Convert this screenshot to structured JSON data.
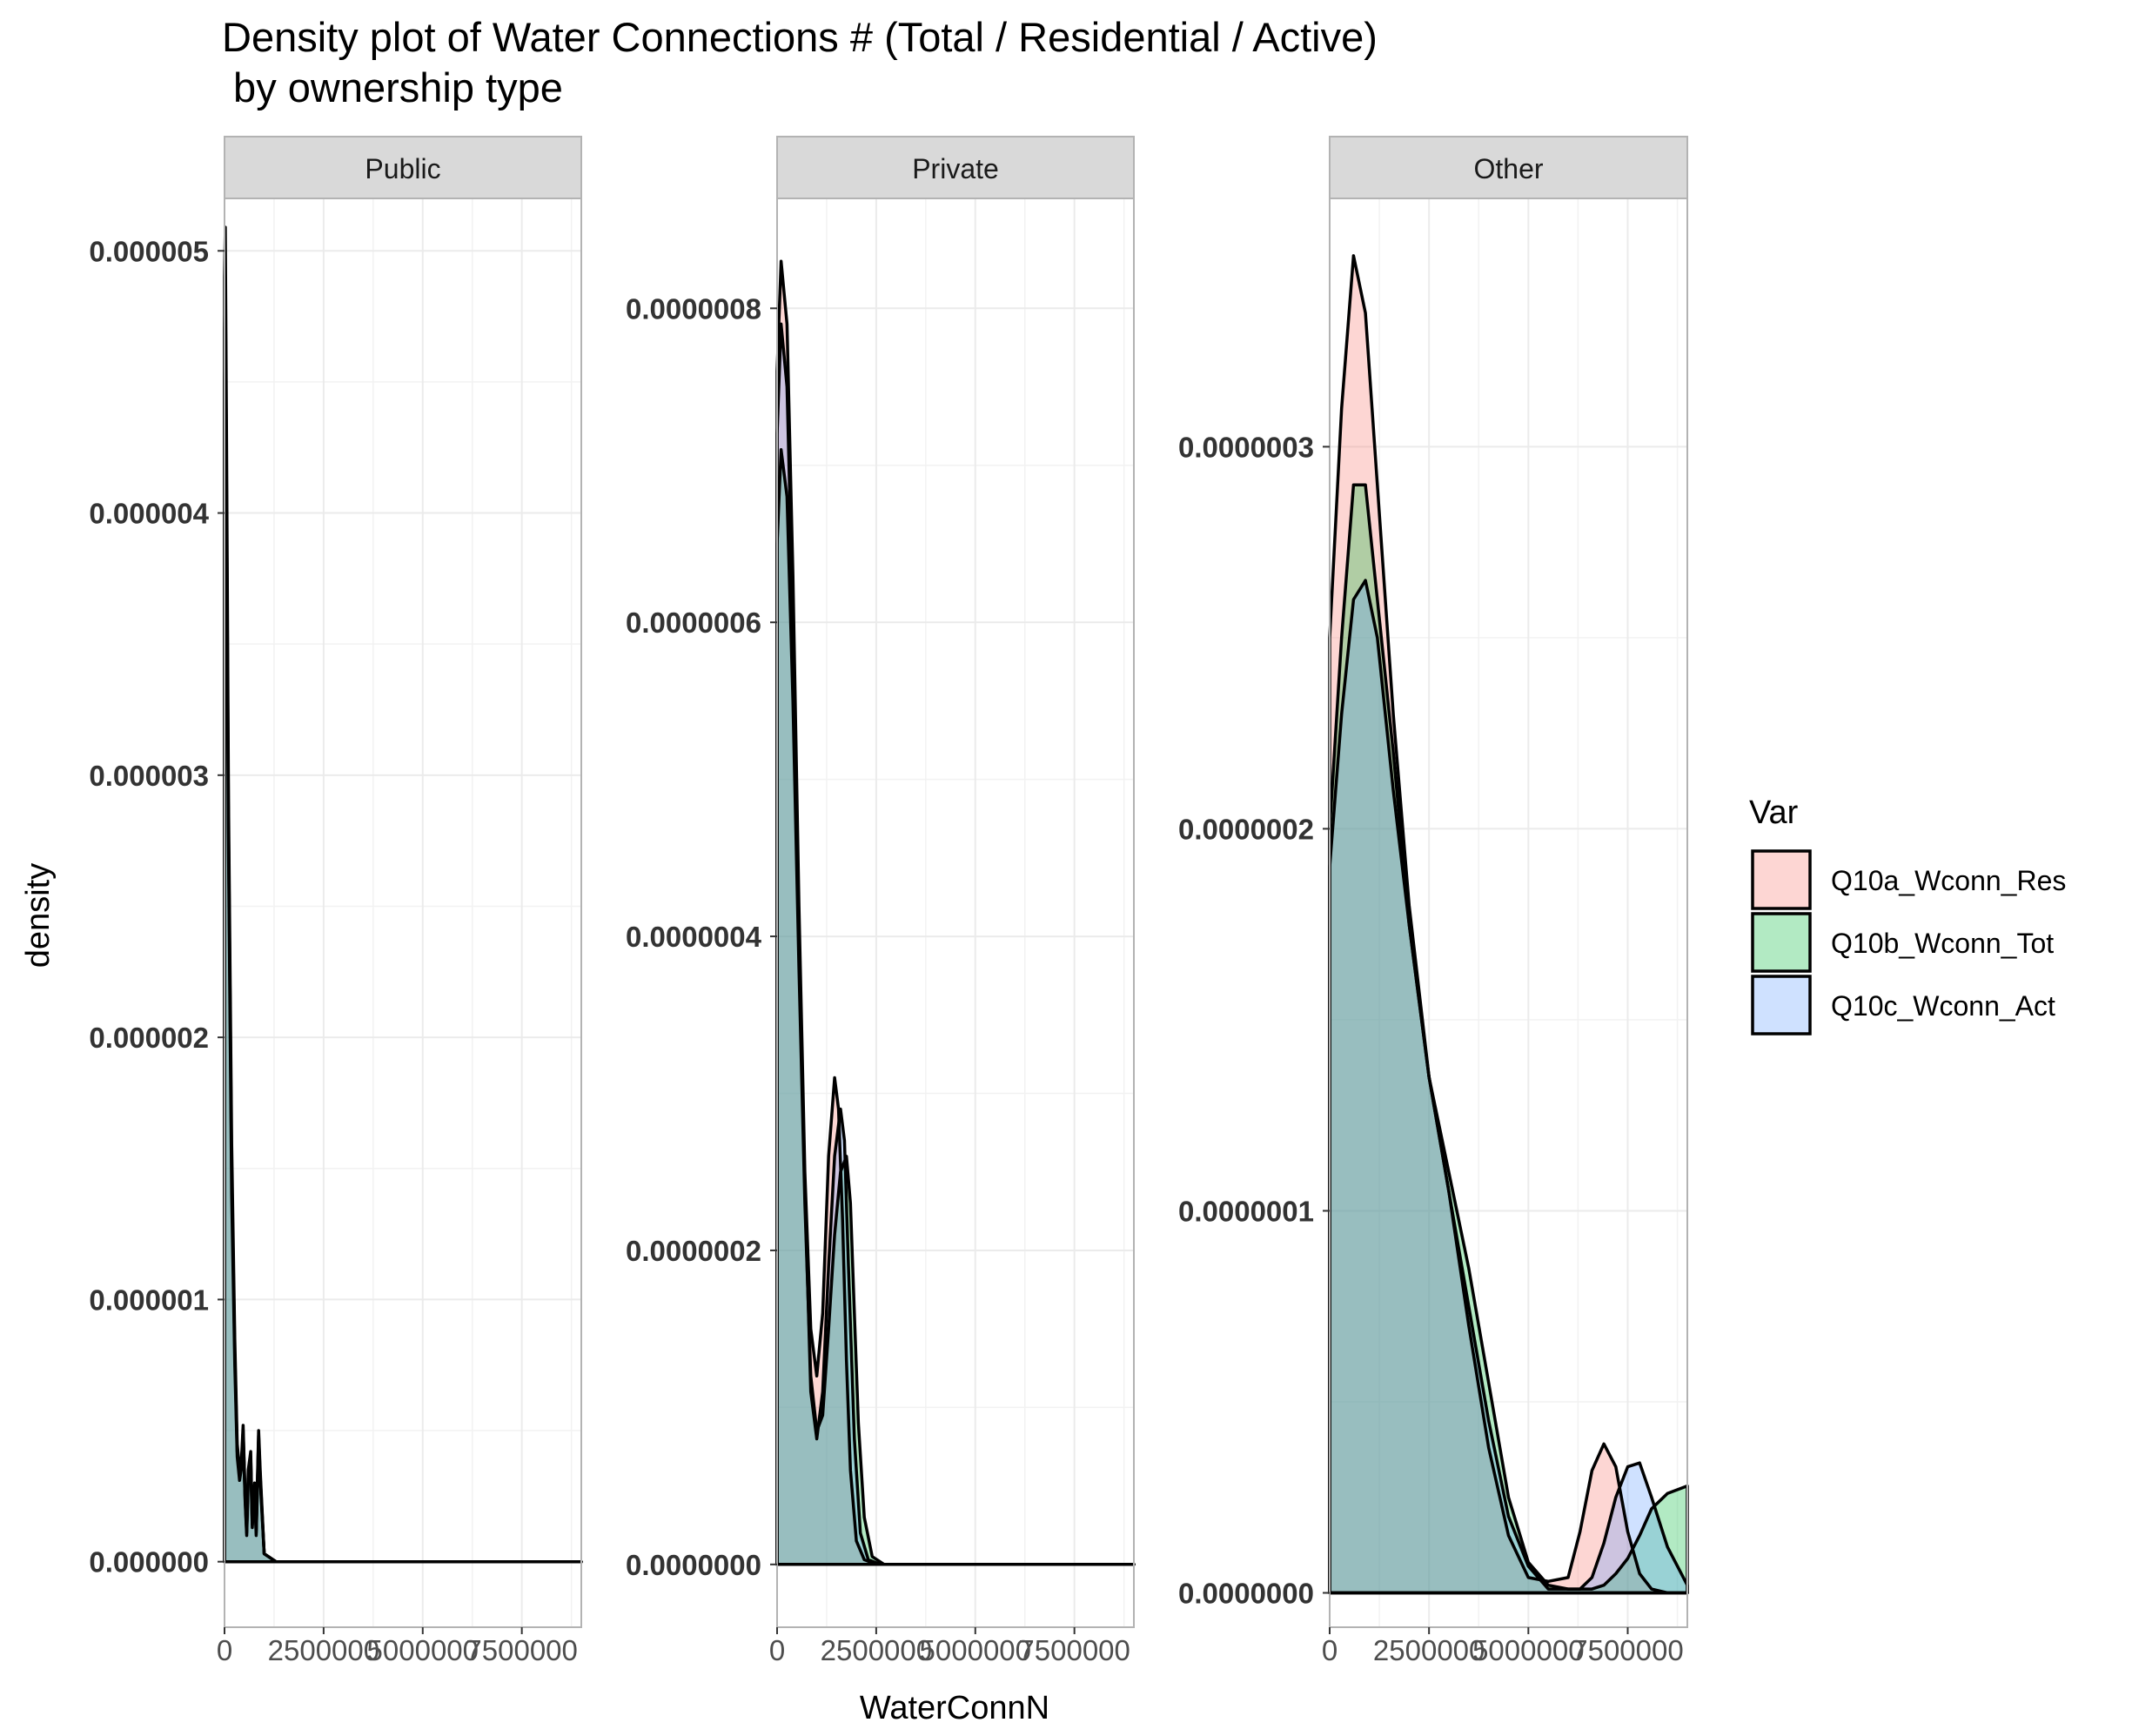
{
  "chart_data": {
    "type": "area",
    "title_line1": "Density plot of Water Connections # (Total / Residential / Active)",
    "title_line2": " by ownership type",
    "xlabel": "WaterConnN",
    "ylabel": "density",
    "x_ticks": [
      0,
      2500000,
      5000000,
      7500000
    ],
    "x_tick_labels": [
      "0",
      "2500000",
      "5000000",
      "7500000"
    ],
    "xlim": [
      0,
      9000000
    ],
    "grid": true,
    "legend": {
      "title": "Var",
      "placement": "right",
      "entries": [
        "Q10a_Wconn_Res",
        "Q10b_Wconn_Tot",
        "Q10c_Wconn_Act"
      ]
    },
    "colors": {
      "Q10a_Wconn_Res": "#F8766D",
      "Q10b_Wconn_Tot": "#00BA38",
      "Q10c_Wconn_Act": "#619CFF",
      "strip_background": "#D9D9D9",
      "panel_border": "#B3B3B3"
    },
    "facets": [
      {
        "label": "Public",
        "ylim": [
          -2.5e-07,
          5.2e-06
        ],
        "y_ticks": [
          0,
          1e-06,
          2e-06,
          3e-06,
          4e-06,
          5e-06
        ],
        "y_tick_labels": [
          "0.000000",
          "0.000001",
          "0.000002",
          "0.000003",
          "0.000004",
          "0.000005"
        ],
        "series": [
          {
            "name": "Q10a_Wconn_Res",
            "x": [
              0,
              20000,
              50000,
              100000,
              180000,
              260000,
              320000,
              380000,
              430000,
              470000,
              520000,
              560000,
              600000,
              660000,
              700000,
              760000,
              800000,
              860000,
              900000,
              1000000,
              1300000,
              2000000,
              4000000,
              6000000,
              8000000,
              9000000
            ],
            "y": [
              4.9e-06,
              5.09e-06,
              4.3e-06,
              2.9e-06,
              1.6e-06,
              8.5e-07,
              4.5e-07,
              3.5e-07,
              4e-07,
              5.2e-07,
              2.5e-07,
              1.2e-07,
              3.5e-07,
              4.2e-07,
              1.5e-07,
              3e-07,
              1.2e-07,
              5e-07,
              3.5e-07,
              3e-08,
              0,
              0,
              0,
              0,
              0,
              0
            ]
          },
          {
            "name": "Q10b_Wconn_Tot",
            "x": [
              0,
              20000,
              50000,
              100000,
              180000,
              260000,
              320000,
              380000,
              430000,
              470000,
              520000,
              560000,
              600000,
              660000,
              700000,
              760000,
              800000,
              860000,
              900000,
              1000000,
              1300000,
              2000000,
              4000000,
              6000000,
              8000000,
              9000000
            ],
            "y": [
              4.7e-06,
              4.9e-06,
              4.1e-06,
              2.8e-06,
              1.5e-06,
              8e-07,
              4.2e-07,
              3.3e-07,
              3.8e-07,
              5e-07,
              2.4e-07,
              1.1e-07,
              3.3e-07,
              4e-07,
              1.4e-07,
              2.9e-07,
              1.1e-07,
              4.8e-07,
              3.3e-07,
              3e-08,
              0,
              0,
              0,
              0,
              0,
              0
            ]
          },
          {
            "name": "Q10c_Wconn_Act",
            "x": [
              0,
              20000,
              50000,
              100000,
              180000,
              260000,
              320000,
              380000,
              430000,
              470000,
              520000,
              560000,
              600000,
              660000,
              700000,
              760000,
              800000,
              860000,
              900000,
              1000000,
              1300000,
              2000000,
              4000000,
              6000000,
              8000000,
              9000000
            ],
            "y": [
              4.5e-06,
              4.7e-06,
              3.9e-06,
              2.7e-06,
              1.4e-06,
              7.5e-07,
              4e-07,
              3.1e-07,
              3.6e-07,
              4.8e-07,
              2.3e-07,
              1e-07,
              3.1e-07,
              3.8e-07,
              1.3e-07,
              2.7e-07,
              1e-07,
              4.6e-07,
              3.1e-07,
              3e-08,
              0,
              0,
              0,
              0,
              0,
              0
            ]
          }
        ]
      },
      {
        "label": "Private",
        "ylim": [
          -4e-08,
          8.7e-07
        ],
        "y_ticks": [
          0,
          2e-07,
          4e-07,
          6e-07,
          8e-07
        ],
        "y_tick_labels": [
          "0.0000000",
          "0.0000002",
          "0.0000004",
          "0.0000006",
          "0.0000008"
        ],
        "series": [
          {
            "name": "Q10a_Wconn_Res",
            "x": [
              0,
              100000,
              250000,
              400000,
              550000,
              700000,
              850000,
              1000000,
              1150000,
              1300000,
              1450000,
              1550000,
              1650000,
              1750000,
              1850000,
              2000000,
              2200000,
              2500000,
              3000000,
              4000000,
              6000000,
              9000000
            ],
            "y": [
              7.6e-07,
              8.3e-07,
              7.9e-07,
              6.3e-07,
              4.2e-07,
              2.5e-07,
              1.5e-07,
              1.2e-07,
              1.6e-07,
              2.6e-07,
              3.1e-07,
              2.9e-07,
              2.2e-07,
              1.3e-07,
              6e-08,
              1.5e-08,
              3e-09,
              0,
              0,
              0,
              0,
              0
            ]
          },
          {
            "name": "Q10b_Wconn_Tot",
            "x": [
              0,
              100000,
              250000,
              400000,
              550000,
              700000,
              850000,
              1000000,
              1150000,
              1300000,
              1450000,
              1600000,
              1750000,
              1850000,
              1950000,
              2050000,
              2200000,
              2400000,
              2700000,
              3500000,
              6000000,
              9000000
            ],
            "y": [
              6.5e-07,
              7.1e-07,
              6.8e-07,
              5.5e-07,
              3.8e-07,
              2.3e-07,
              1.2e-07,
              8.5e-08,
              9.5e-08,
              1.5e-07,
              2.1e-07,
              2.5e-07,
              2.6e-07,
              2.3e-07,
              1.6e-07,
              9e-08,
              3e-08,
              5e-09,
              0,
              0,
              0,
              0
            ]
          },
          {
            "name": "Q10c_Wconn_Act",
            "x": [
              0,
              100000,
              250000,
              400000,
              550000,
              700000,
              850000,
              1000000,
              1150000,
              1300000,
              1450000,
              1600000,
              1700000,
              1800000,
              1950000,
              2100000,
              2300000,
              2600000,
              3000000,
              4000000,
              6000000,
              9000000
            ],
            "y": [
              7.2e-07,
              7.9e-07,
              7.5e-07,
              6e-07,
              4e-07,
              2.4e-07,
              1.1e-07,
              8e-08,
              1.1e-07,
              1.9e-07,
              2.6e-07,
              2.9e-07,
              2.7e-07,
              1.9e-07,
              8e-08,
              2e-08,
              3e-09,
              0,
              0,
              0,
              0,
              0
            ]
          }
        ]
      },
      {
        "label": "Other",
        "ylim": [
          -9e-09,
          3.65e-07
        ],
        "y_ticks": [
          0,
          1e-07,
          2e-07,
          3e-07
        ],
        "y_tick_labels": [
          "0.0000000",
          "0.0000001",
          "0.0000002",
          "0.0000003"
        ],
        "series": [
          {
            "name": "Q10a_Wconn_Res",
            "x": [
              0,
              300000,
              600000,
              900000,
              1200000,
              1600000,
              2000000,
              2500000,
              3000000,
              3500000,
              4000000,
              4500000,
              5000000,
              5500000,
              6000000,
              6300000,
              6600000,
              6900000,
              7200000,
              7500000,
              7800000,
              8100000,
              8500000,
              9000000
            ],
            "y": [
              2.5e-07,
              3.1e-07,
              3.5e-07,
              3.35e-07,
              2.9e-07,
              2.3e-07,
              1.8e-07,
              1.35e-07,
              1.05e-07,
              7e-08,
              3.8e-08,
              1.5e-08,
              4e-09,
              3e-09,
              4e-09,
              1.6e-08,
              3.2e-08,
              3.9e-08,
              3.3e-08,
              1.6e-08,
              5e-09,
              1e-09,
              0,
              0
            ]
          },
          {
            "name": "Q10b_Wconn_Tot",
            "x": [
              0,
              300000,
              600000,
              900000,
              1200000,
              1600000,
              2000000,
              2500000,
              3000000,
              3500000,
              4000000,
              4500000,
              5000000,
              5500000,
              6000000,
              6300000,
              6600000,
              6900000,
              7200000,
              7500000,
              7800000,
              8100000,
              8500000,
              9000000
            ],
            "y": [
              2e-07,
              2.5e-07,
              2.9e-07,
              2.9e-07,
              2.6e-07,
              2.2e-07,
              1.75e-07,
              1.35e-07,
              1.1e-07,
              8.5e-08,
              5.5e-08,
              2.5e-08,
              8e-09,
              2e-09,
              1e-09,
              1e-09,
              1e-09,
              2e-09,
              5e-09,
              9e-09,
              1.5e-08,
              2.2e-08,
              2.6e-08,
              2.8e-08
            ]
          },
          {
            "name": "Q10c_Wconn_Act",
            "x": [
              0,
              300000,
              600000,
              900000,
              1200000,
              1600000,
              2000000,
              2500000,
              3000000,
              3500000,
              4000000,
              4500000,
              5000000,
              5500000,
              6000000,
              6300000,
              6600000,
              6900000,
              7200000,
              7500000,
              7800000,
              8100000,
              8500000,
              9000000
            ],
            "y": [
              1.9e-07,
              2.3e-07,
              2.6e-07,
              2.65e-07,
              2.5e-07,
              2.1e-07,
              1.75e-07,
              1.35e-07,
              1.05e-07,
              7.5e-08,
              4.5e-08,
              2e-08,
              7e-09,
              1e-09,
              1e-09,
              1e-09,
              4e-09,
              1.3e-08,
              2.5e-08,
              3.3e-08,
              3.4e-08,
              2.5e-08,
              1.2e-08,
              2e-09
            ]
          }
        ]
      }
    ]
  }
}
